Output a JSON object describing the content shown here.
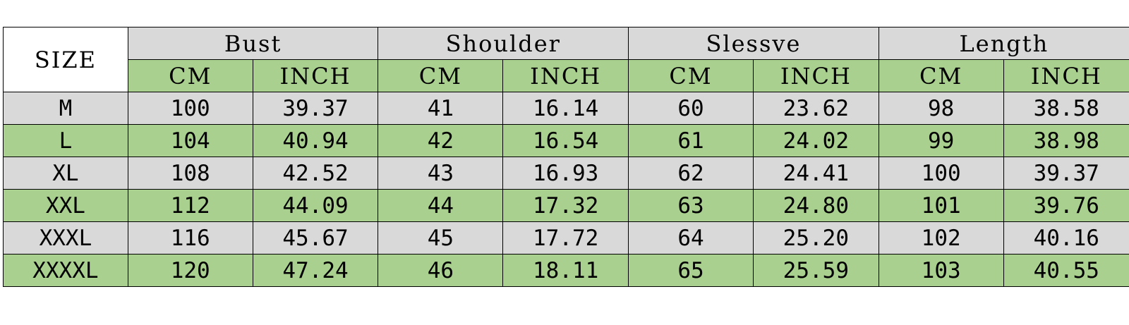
{
  "table": {
    "size_header": "SIZE",
    "groups": [
      {
        "label": "Bust"
      },
      {
        "label": "Shoulder"
      },
      {
        "label": "Slessve"
      },
      {
        "label": "Length"
      }
    ],
    "units": {
      "cm": "CM",
      "inch": "INCH"
    },
    "colors": {
      "gray": "#d9d9d9",
      "green": "#a9d08e",
      "border": "#000000"
    },
    "rows": [
      {
        "size": "M",
        "values": [
          "100",
          "39.37",
          "41",
          "16.14",
          "60",
          "23.62",
          "98",
          "38.58"
        ]
      },
      {
        "size": "L",
        "values": [
          "104",
          "40.94",
          "42",
          "16.54",
          "61",
          "24.02",
          "99",
          "38.98"
        ]
      },
      {
        "size": "XL",
        "values": [
          "108",
          "42.52",
          "43",
          "16.93",
          "62",
          "24.41",
          "100",
          "39.37"
        ]
      },
      {
        "size": "XXL",
        "values": [
          "112",
          "44.09",
          "44",
          "17.32",
          "63",
          "24.80",
          "101",
          "39.76"
        ]
      },
      {
        "size": "XXXL",
        "values": [
          "116",
          "45.67",
          "45",
          "17.72",
          "64",
          "25.20",
          "102",
          "40.16"
        ]
      },
      {
        "size": "XXXXL",
        "values": [
          "120",
          "47.24",
          "46",
          "18.11",
          "65",
          "25.59",
          "103",
          "40.55"
        ]
      }
    ]
  }
}
